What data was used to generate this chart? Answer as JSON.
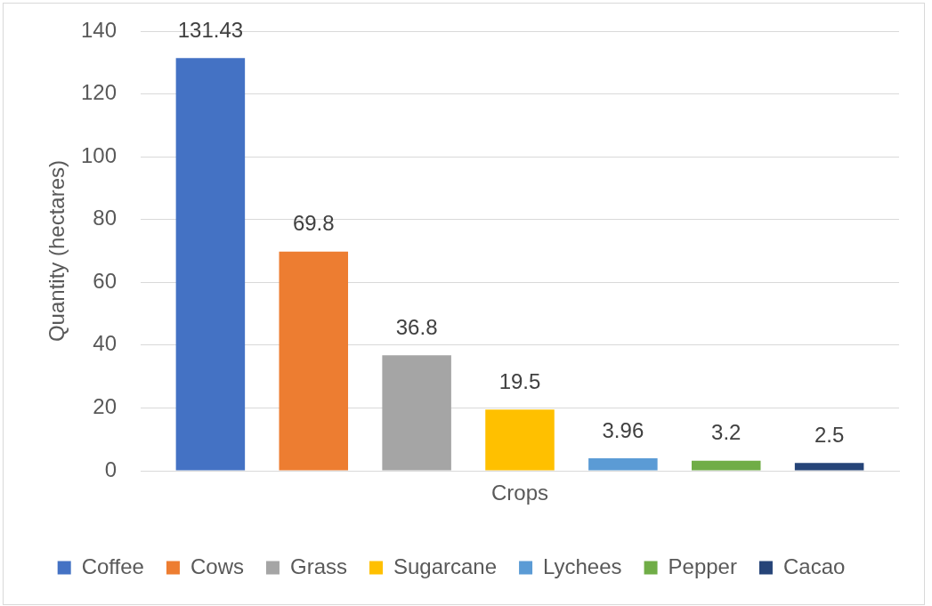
{
  "chart_data": {
    "type": "bar",
    "ylabel": "Quantity (hectares)",
    "categories": [
      "Crops"
    ],
    "series": [
      {
        "name": "Coffee",
        "color": "#4472c4",
        "values": [
          131.43
        ]
      },
      {
        "name": "Cows",
        "color": "#ed7d31",
        "values": [
          69.8
        ]
      },
      {
        "name": "Grass",
        "color": "#a5a5a5",
        "values": [
          36.8
        ]
      },
      {
        "name": "Sugarcane",
        "color": "#ffc000",
        "values": [
          19.5
        ]
      },
      {
        "name": "Lychees",
        "color": "#5b9bd5",
        "values": [
          3.96
        ]
      },
      {
        "name": "Pepper",
        "color": "#70ad47",
        "values": [
          3.2
        ]
      },
      {
        "name": "Cacao",
        "color": "#264478",
        "values": [
          2.5
        ]
      }
    ],
    "ylim": [
      0,
      140
    ],
    "yticks": [
      0,
      20,
      40,
      60,
      80,
      100,
      120,
      140
    ],
    "grid": "y",
    "legend": "bottom",
    "data_labels": true
  }
}
